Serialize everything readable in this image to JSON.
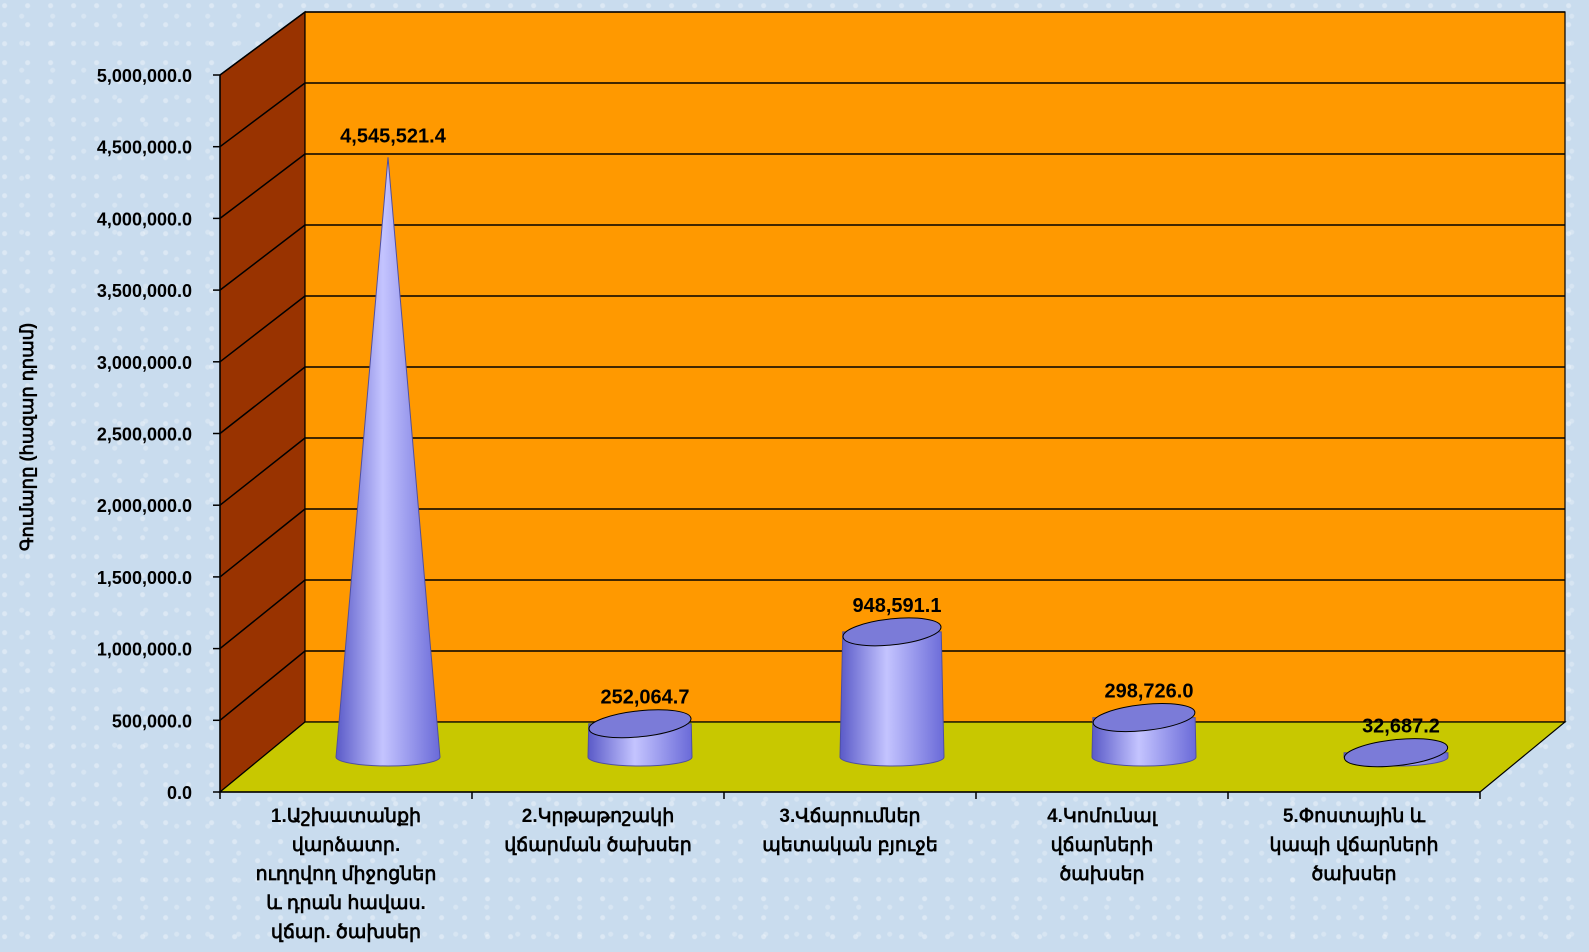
{
  "chart_data": {
    "type": "bar",
    "title": "",
    "xlabel": "",
    "ylabel": "Գումարը (հազար դրամ)",
    "ylim": [
      0,
      5000000
    ],
    "ytick_values": [
      0,
      500000,
      1000000,
      1500000,
      2000000,
      2500000,
      3000000,
      3500000,
      4000000,
      4500000,
      5000000
    ],
    "ytick_labels": [
      "0.0",
      "500,000.0",
      "1,000,000.0",
      "1,500,000.0",
      "2,000,000.0",
      "2,500,000.0",
      "3,000,000.0",
      "3,500,000.0",
      "4,000,000.0",
      "4,500,000.0",
      "5,000,000.0"
    ],
    "categories": [
      [
        "1.Աշխատանքի",
        "վարձատր.",
        "ուղղվող միջոցներ",
        "և դրան հավաս.",
        "վճար. ծախսեր"
      ],
      [
        "2.Կրթաթոշակի",
        "վճարման ծախսեր"
      ],
      [
        "3.Վճարումներ",
        "պետական բյուջե"
      ],
      [
        "4.Կոմունալ",
        "վճարների",
        "ծախսեր"
      ],
      [
        "5.Փոստային և",
        "կապի վճարների",
        "ծախսեր"
      ]
    ],
    "values": [
      4545521.4,
      252064.7,
      948591.1,
      298726.0,
      32687.2
    ],
    "data_labels": [
      "4,545,521.4",
      "252,064.7",
      "948,591.1",
      "298,726.0",
      "32,687.2"
    ],
    "grid": true,
    "legend": "none",
    "colors": {
      "wall": "#ff9900",
      "side_wall": "#993300",
      "floor": "#c8c800",
      "shape": "#9999ff",
      "shape_top": "#7b7bd8",
      "grid": "#000000"
    }
  }
}
